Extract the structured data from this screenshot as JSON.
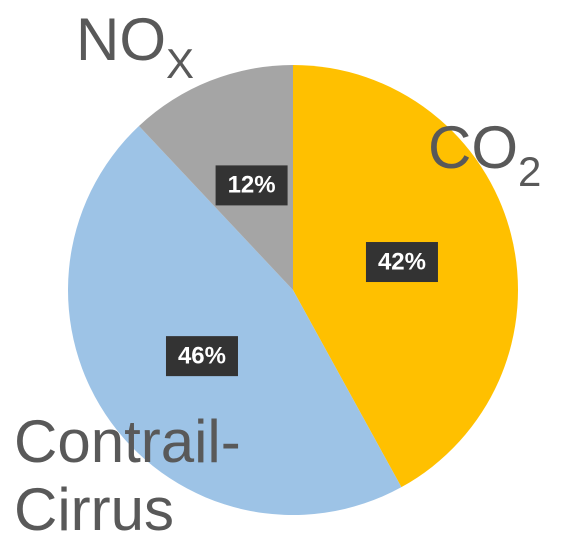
{
  "chart_data": {
    "type": "pie",
    "categories": [
      [
        "CO",
        "2"
      ],
      [
        "Contrail-",
        "Cirrus"
      ],
      [
        "NO",
        "X"
      ]
    ],
    "values": [
      42,
      46,
      12
    ],
    "value_labels": [
      "42%",
      "46%",
      "12%"
    ],
    "colors": [
      "#ffc000",
      "#9dc3e6",
      "#a5a5a5"
    ]
  }
}
